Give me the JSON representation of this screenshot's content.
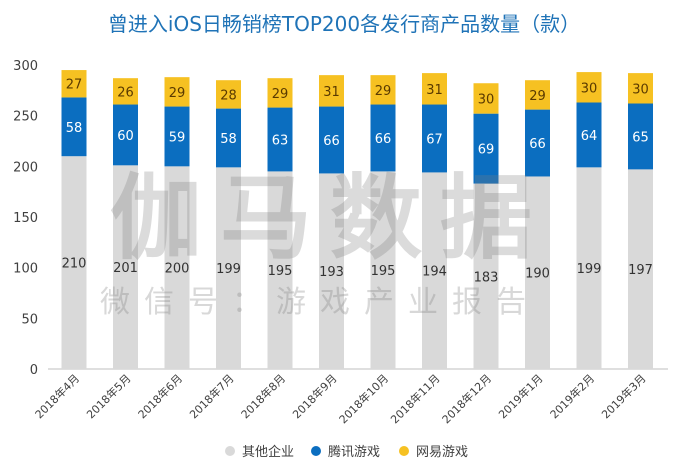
{
  "chart_data": {
    "type": "bar",
    "stacked": true,
    "title": "曾进入iOS日畅销榜TOP200各发行商产品数量（款）",
    "categories": [
      "2018年4月",
      "2018年5月",
      "2018年6月",
      "2018年7月",
      "2018年8月",
      "2018年9月",
      "2018年10月",
      "2018年11月",
      "2018年12月",
      "2019年1月",
      "2019年2月",
      "2019年3月"
    ],
    "series": [
      {
        "name": "其他企业",
        "color": "#d9d9d9",
        "label_color": "#333333",
        "values": [
          210,
          201,
          200,
          199,
          195,
          193,
          195,
          194,
          183,
          190,
          199,
          197
        ]
      },
      {
        "name": "腾讯游戏",
        "color": "#0b6ec0",
        "label_color": "#ffffff",
        "values": [
          58,
          60,
          59,
          58,
          63,
          66,
          66,
          67,
          69,
          66,
          64,
          65
        ]
      },
      {
        "name": "网易游戏",
        "color": "#f6c122",
        "label_color": "#5a3a00",
        "values": [
          27,
          26,
          29,
          28,
          29,
          31,
          29,
          31,
          30,
          29,
          30,
          30
        ]
      }
    ],
    "ylim": [
      0,
      300
    ],
    "yticks": [
      0,
      50,
      100,
      150,
      200,
      250,
      300
    ],
    "grid": false,
    "legend": "bottom"
  },
  "watermark": {
    "main": "伽马数据",
    "sub": "微信号：游戏产业报告"
  }
}
